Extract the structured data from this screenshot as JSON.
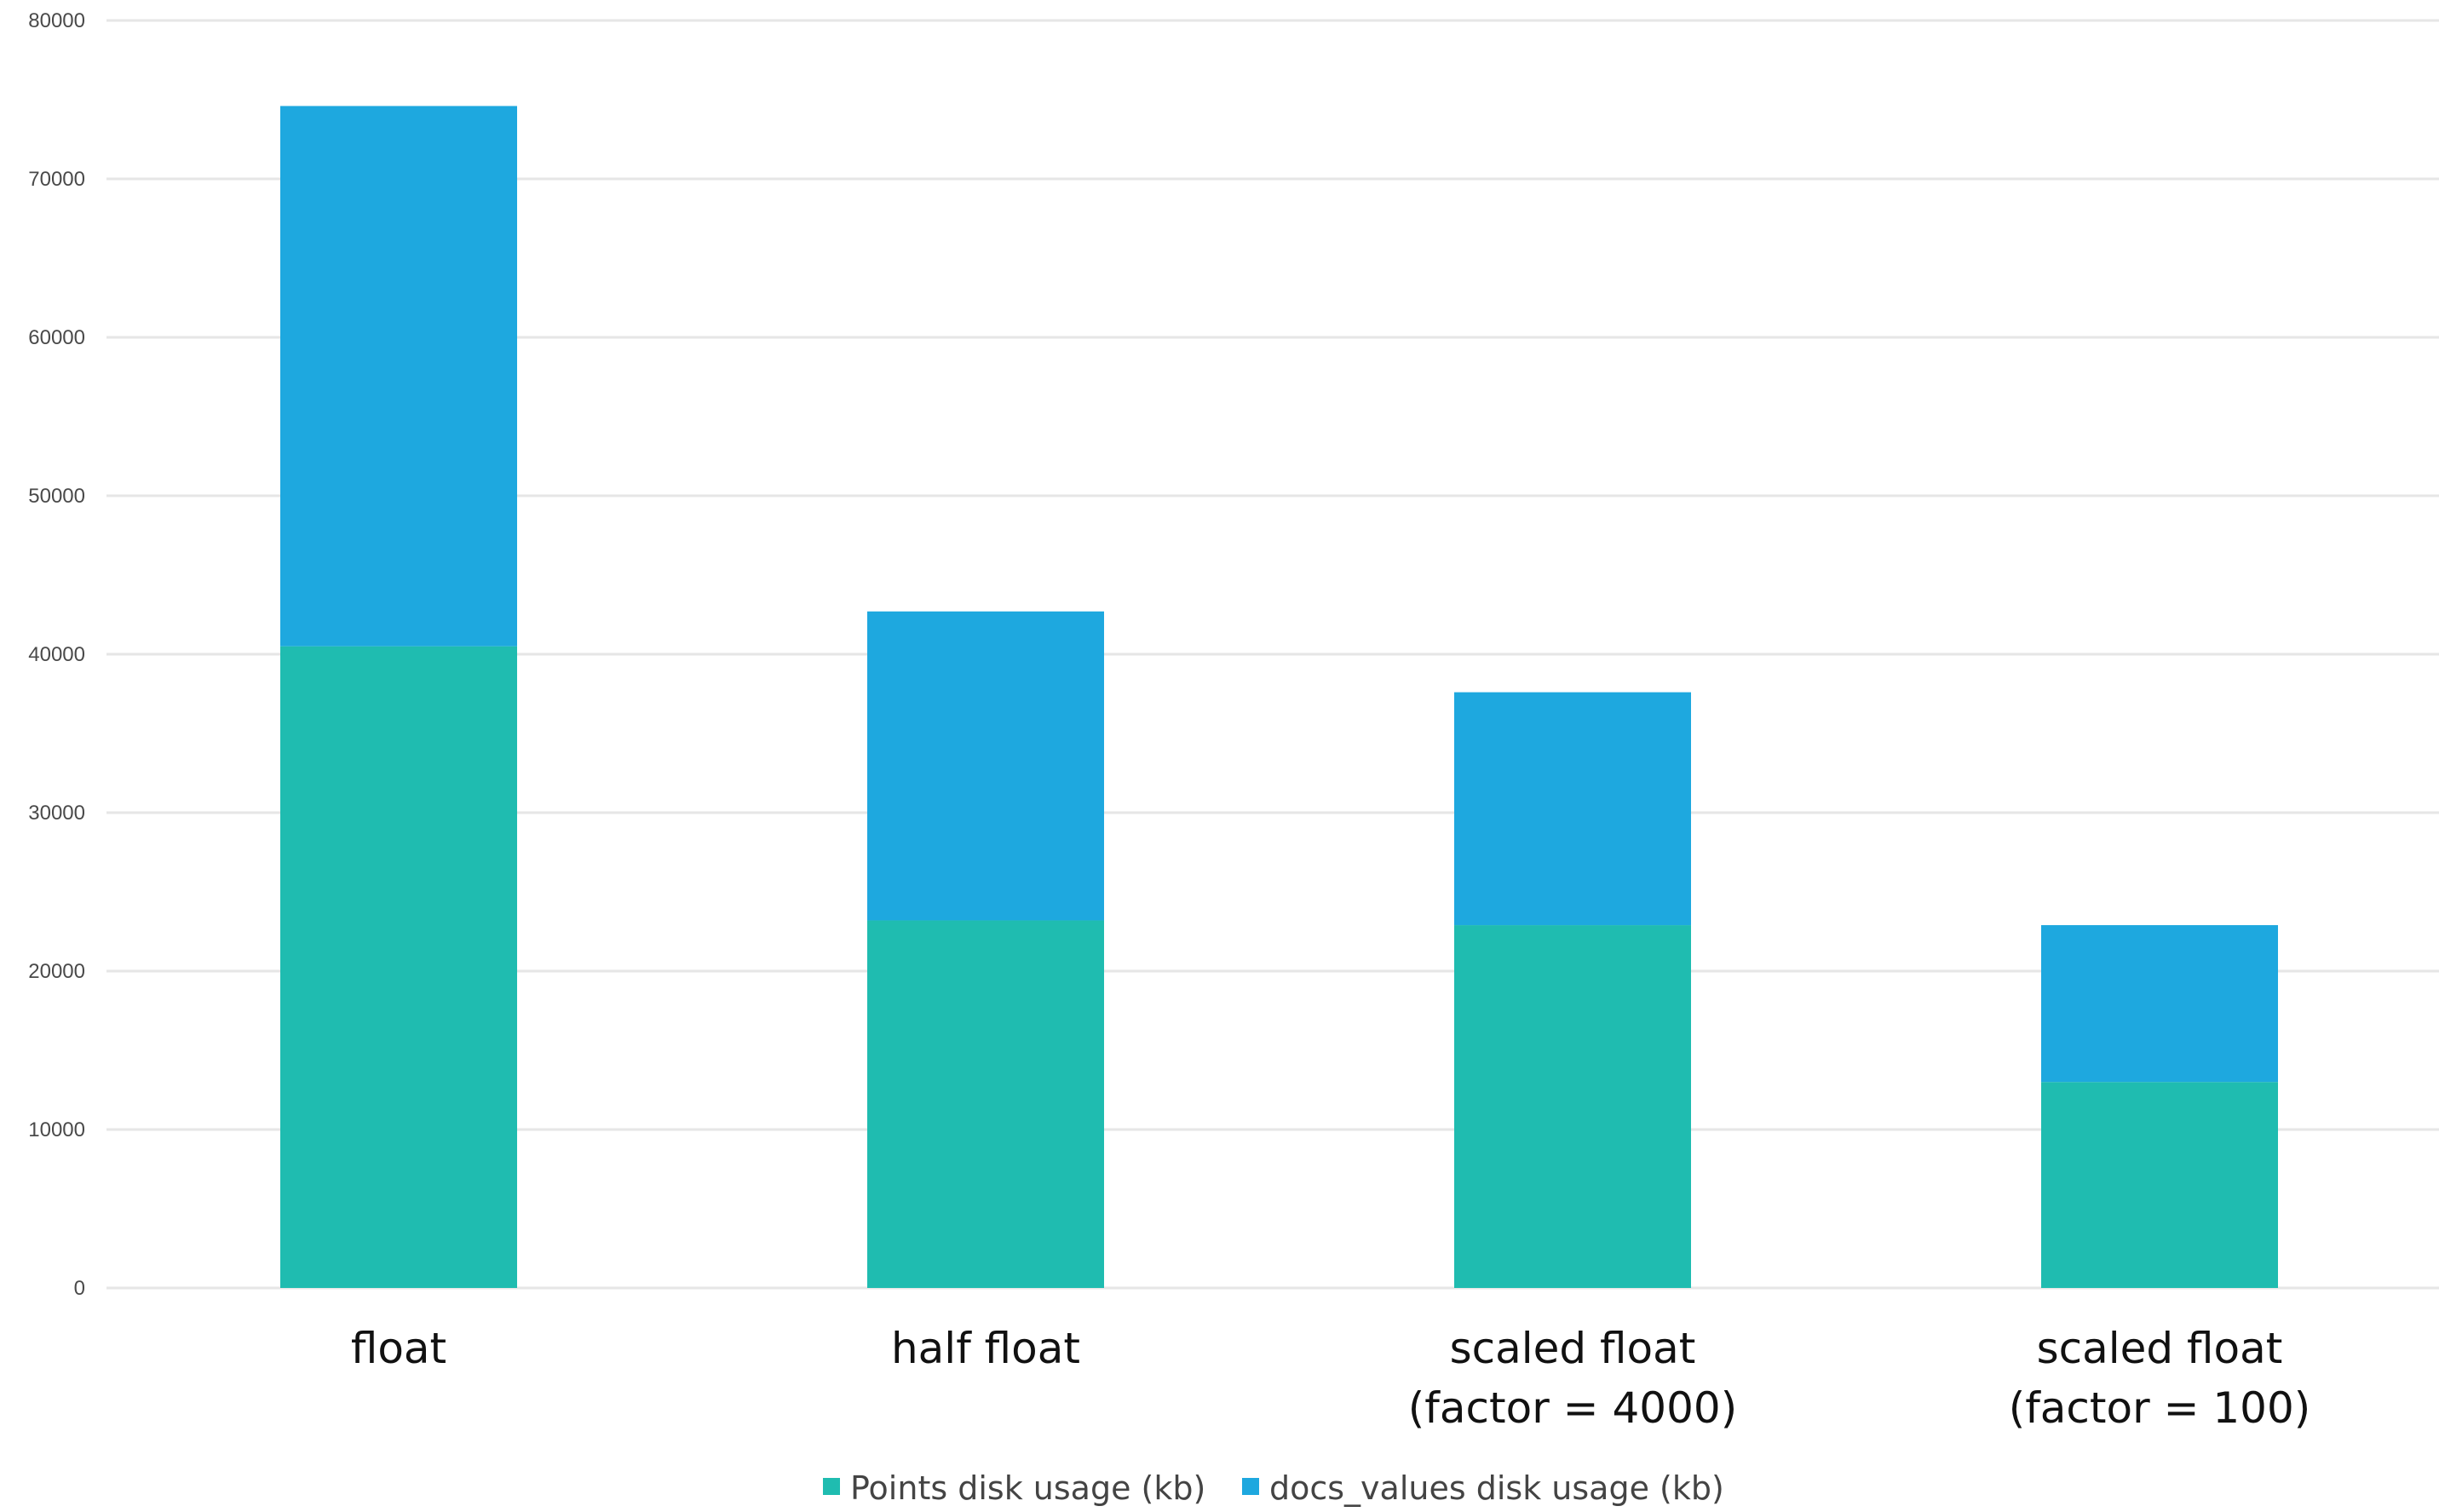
{
  "chart_data": {
    "type": "bar",
    "stacked": true,
    "categories": [
      [
        "float"
      ],
      [
        "half float"
      ],
      [
        "scaled float",
        "(factor = 4000)"
      ],
      [
        "scaled float",
        "(factor = 100)"
      ]
    ],
    "series": [
      {
        "name": "Points disk usage (kb)",
        "color": "#1fbcb0",
        "values": [
          40500,
          23200,
          22900,
          13000
        ]
      },
      {
        "name": "docs_values disk usage (kb)",
        "color": "#1ea8df",
        "values": [
          34100,
          19500,
          14700,
          9900
        ]
      }
    ],
    "ylim": [
      0,
      80000
    ],
    "yticks": [
      0,
      10000,
      20000,
      30000,
      40000,
      50000,
      60000,
      70000,
      80000
    ],
    "grid": true,
    "legend_position": "bottom",
    "title": "",
    "xlabel": "",
    "ylabel": ""
  },
  "colors": {
    "grid": "#e6e6e6",
    "background": "#ffffff"
  }
}
